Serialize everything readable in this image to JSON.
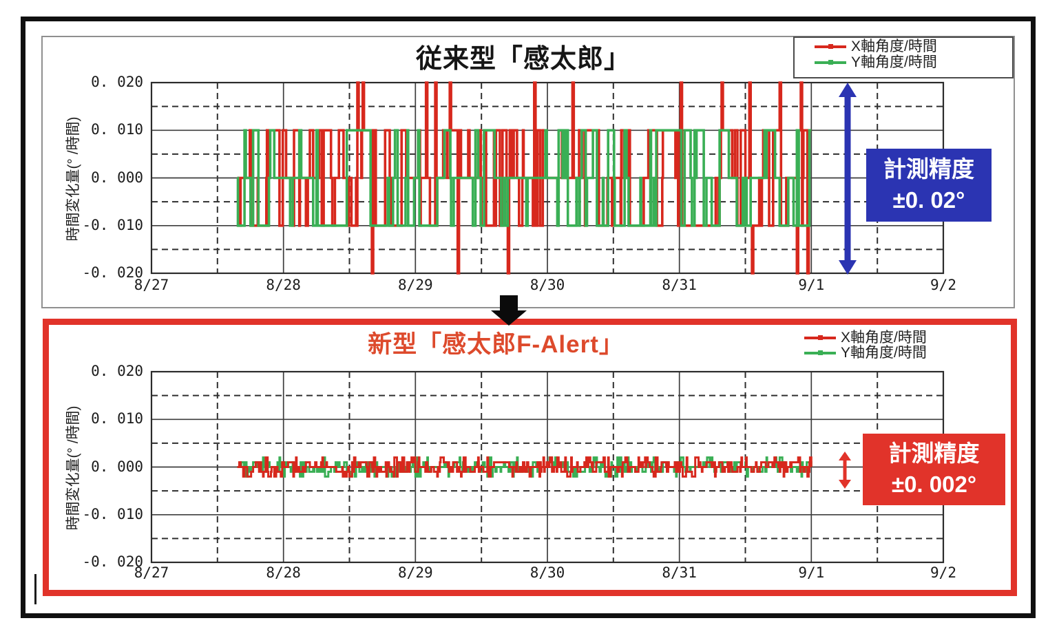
{
  "chart_data": [
    {
      "type": "line",
      "title": "従来型「感太郎」",
      "title_color": "#161616",
      "ylabel": "時間変化量(° /時間)",
      "xlabel": "",
      "x_tick_labels": [
        "8/27",
        "8/28",
        "8/29",
        "8/30",
        "8/31",
        "9/1",
        "9/2"
      ],
      "x_days": 6,
      "y_tick_values": [
        0.02,
        0.01,
        0.0,
        -0.01,
        -0.02
      ],
      "y_tick_labels": [
        "0. 020",
        "0. 010",
        "0. 000",
        "-0. 010",
        "-0. 020"
      ],
      "ylim": [
        -0.02,
        0.02
      ],
      "grid": {
        "major": "solid",
        "minor": "dashed",
        "h_minor_step": 0.005,
        "v_minor_step": 0.5
      },
      "legend": {
        "position": "top-right",
        "boxed": true,
        "items": [
          {
            "label": "X軸角度/時間",
            "color": "#d7281d"
          },
          {
            "label": "Y軸角度/時間",
            "color": "#3aaf55"
          }
        ]
      },
      "annotation": {
        "line1": "計測精度",
        "line2": "±0. 02°",
        "text_color": "#ffffff",
        "bg_color": "#2b34b2",
        "arrow_color": "#2b34b2"
      },
      "series": [
        {
          "name": "X軸角度/時間",
          "color": "#d7281d",
          "kind": "quantized-step-noise",
          "t_start_day": 0.65,
          "t_end_day": 5.0,
          "dt_day": 0.005,
          "levels": [
            -0.01,
            0,
            0.01
          ],
          "level_weights": [
            0.32,
            0.36,
            0.32
          ],
          "switch_prob": 0.22,
          "seed": 13,
          "stroke_width": 3.6,
          "spike_value": 0.02,
          "spikes_up_day": [
            1.56,
            1.6,
            2.08,
            2.15,
            2.26,
            2.9,
            3.19,
            4.01,
            4.32,
            4.53,
            4.76,
            4.92
          ],
          "spikes_down_day": [
            1.67,
            2.32,
            2.7,
            4.55,
            4.89,
            4.97
          ]
        },
        {
          "name": "Y軸角度/時間",
          "color": "#3aaf55",
          "kind": "quantized-step-noise",
          "t_start_day": 0.65,
          "t_end_day": 5.0,
          "dt_day": 0.005,
          "levels": [
            -0.01,
            0,
            0.01
          ],
          "level_weights": [
            0.32,
            0.36,
            0.32
          ],
          "switch_prob": 0.2,
          "seed": 7,
          "stroke_width": 3.6,
          "spike_value": 0,
          "spikes_up_day": [],
          "spikes_down_day": []
        }
      ]
    },
    {
      "type": "line",
      "title": "新型「感太郎F-Alert」",
      "title_color": "#dd4a2c",
      "ylabel": "時間変化量(° /時間)",
      "xlabel": "",
      "x_tick_labels": [
        "8/27",
        "8/28",
        "8/29",
        "8/30",
        "8/31",
        "9/1",
        "9/2"
      ],
      "x_days": 6,
      "y_tick_values": [
        0.02,
        0.01,
        0.0,
        -0.01,
        -0.02
      ],
      "y_tick_labels": [
        "0. 020",
        "0. 010",
        "0. 000",
        "-0. 010",
        "-0. 020"
      ],
      "ylim": [
        -0.02,
        0.02
      ],
      "grid": {
        "major": "solid",
        "minor": "dashed",
        "h_minor_step": 0.005,
        "v_minor_step": 0.5
      },
      "legend": {
        "position": "top-right",
        "boxed": false,
        "items": [
          {
            "label": "X軸角度/時間",
            "color": "#d7281d"
          },
          {
            "label": "Y軸角度/時間",
            "color": "#3aaf55"
          }
        ]
      },
      "annotation": {
        "line1": "計測精度",
        "line2": "±0. 002°",
        "text_color": "#ffffff",
        "bg_color": "#e1332a",
        "arrow_color": "#e1332a"
      },
      "series": [
        {
          "name": "Y軸角度/時間",
          "color": "#3aaf55",
          "kind": "quantized-step-noise",
          "t_start_day": 0.65,
          "t_end_day": 5.0,
          "dt_day": 0.005,
          "levels": [
            -0.002,
            -0.001,
            0,
            0.001,
            0.002
          ],
          "level_weights": [
            0.06,
            0.22,
            0.44,
            0.22,
            0.06
          ],
          "switch_prob": 0.5,
          "seed": 5,
          "stroke_width": 3,
          "spike_value": 0,
          "spikes_up_day": [],
          "spikes_down_day": []
        },
        {
          "name": "X軸角度/時間",
          "color": "#d7281d",
          "kind": "quantized-step-noise",
          "t_start_day": 0.65,
          "t_end_day": 5.0,
          "dt_day": 0.005,
          "levels": [
            -0.002,
            -0.001,
            0,
            0.001,
            0.002
          ],
          "level_weights": [
            0.1,
            0.24,
            0.32,
            0.24,
            0.1
          ],
          "switch_prob": 0.5,
          "seed": 21,
          "stroke_width": 3,
          "spike_value": 0,
          "spikes_up_day": [],
          "spikes_down_day": []
        }
      ]
    }
  ]
}
